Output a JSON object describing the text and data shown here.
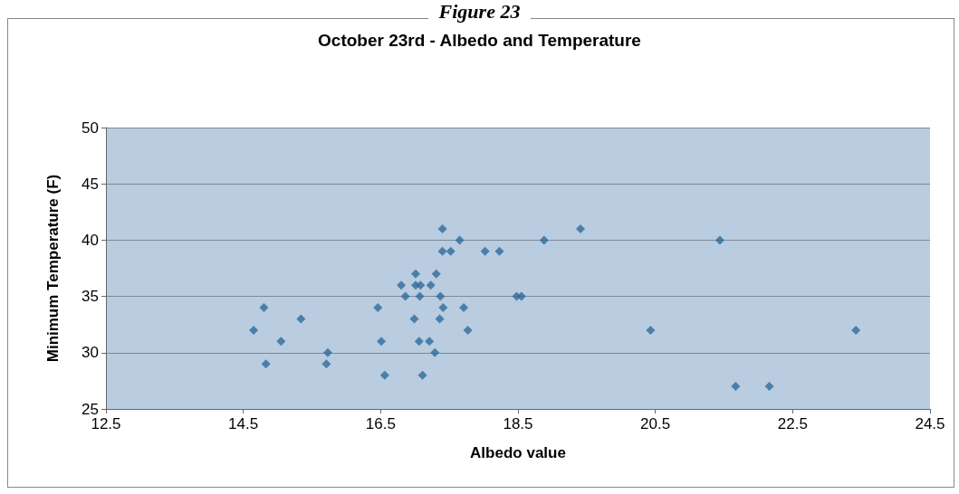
{
  "chart_data": {
    "type": "scatter",
    "title": "October 23rd - Albedo and Temperature",
    "xlabel": "Albedo value",
    "ylabel": "Minimum Temperature (F)",
    "annotations": [
      "Figure 23"
    ],
    "x": [
      14.65,
      14.8,
      14.83,
      15.05,
      15.34,
      15.73,
      15.71,
      16.46,
      16.51,
      16.56,
      16.8,
      16.86,
      17.01,
      16.99,
      17.01,
      17.08,
      17.07,
      17.06,
      17.11,
      17.21,
      17.23,
      17.29,
      17.31,
      17.37,
      17.36,
      17.4,
      17.4,
      17.41,
      17.52,
      17.65,
      17.71,
      17.77,
      18.02,
      18.23,
      18.48,
      18.55,
      18.88,
      19.41,
      20.43,
      21.44,
      21.67,
      22.16,
      23.42
    ],
    "series": [
      {
        "color": "#2e6b9b",
        "values": [
          32,
          34,
          29,
          31,
          33,
          30,
          29,
          34,
          31,
          28,
          36,
          35,
          37,
          33,
          36,
          36,
          35,
          31,
          28,
          31,
          36,
          30,
          37,
          35,
          33,
          41,
          39,
          34,
          39,
          40,
          34,
          32,
          39,
          39,
          35,
          35,
          40,
          41,
          32,
          40,
          27,
          27,
          32
        ]
      }
    ],
    "xlim": [
      12.5,
      24.5
    ],
    "xticks": [
      12.5,
      14.5,
      16.5,
      18.5,
      20.5,
      22.5,
      24.5
    ],
    "ylim": [
      25,
      50
    ],
    "yticks": [
      25,
      30,
      35,
      40,
      45,
      50
    ],
    "grid": "y",
    "marker": "diamond"
  }
}
